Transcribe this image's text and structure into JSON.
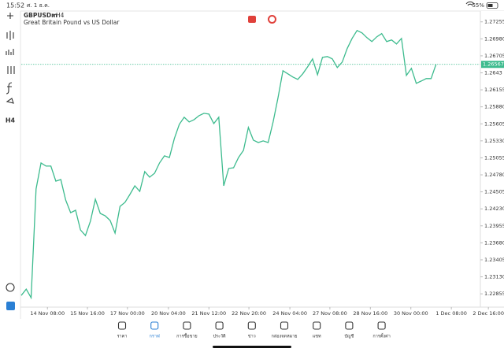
{
  "status_bar": {
    "time": "15:52",
    "date": "ศ. 1 ธ.ค.",
    "battery": "55%"
  },
  "chart_data": {
    "type": "line",
    "title": "GBPUSDm",
    "timeframe": "H4",
    "subtitle": "Great Britain Pound vs US Dollar",
    "color": "#3dbb8e",
    "x": [
      0,
      1,
      2,
      3,
      4,
      5,
      6,
      7,
      8,
      9,
      10,
      11,
      12,
      13,
      14,
      15,
      16,
      17,
      18,
      19,
      20,
      21,
      22,
      23,
      24,
      25,
      26,
      27,
      28,
      29,
      30,
      31,
      32,
      33,
      34,
      35,
      36,
      37,
      38,
      39,
      40,
      41,
      42,
      43,
      44,
      45,
      46,
      47,
      48,
      49,
      50,
      51,
      52,
      53,
      54,
      55,
      56,
      57,
      58,
      59,
      60,
      61,
      62,
      63,
      64,
      65,
      66,
      67,
      68,
      69,
      70,
      71,
      72,
      73,
      74,
      75,
      76,
      77,
      78,
      79,
      80,
      81,
      82,
      83,
      84
    ],
    "values": [
      1.22829,
      1.22931,
      1.22791,
      1.24551,
      1.24972,
      1.24921,
      1.24921,
      1.24678,
      1.24704,
      1.24372,
      1.24168,
      1.24207,
      1.23888,
      1.23798,
      1.24028,
      1.24385,
      1.24156,
      1.24117,
      1.24041,
      1.23837,
      1.2427,
      1.24334,
      1.24462,
      1.24602,
      1.24513,
      1.24832,
      1.24742,
      1.24806,
      1.24972,
      1.25087,
      1.25061,
      1.25367,
      1.25597,
      1.25712,
      1.25635,
      1.25673,
      1.25737,
      1.25775,
      1.25763,
      1.2561,
      1.25712,
      1.24602,
      1.24883,
      1.24895,
      1.25061,
      1.25176,
      1.25546,
      1.25342,
      1.25303,
      1.25329,
      1.25303,
      1.25635,
      1.26031,
      1.26464,
      1.26413,
      1.26362,
      1.26324,
      1.26413,
      1.26528,
      1.26656,
      1.264,
      1.26681,
      1.26694,
      1.26656,
      1.26515,
      1.26604,
      1.26821,
      1.26987,
      1.27115,
      1.27076,
      1.27,
      1.26936,
      1.27013,
      1.27064,
      1.26936,
      1.26962,
      1.26898,
      1.26987,
      1.26388,
      1.26502,
      1.2626,
      1.26298,
      1.26337,
      1.26337,
      1.26567
    ],
    "current_price": 1.26567,
    "xlim": [
      0,
      98.4
    ],
    "xticks": [
      {
        "value": 5.3,
        "label": "14 Nov 08:00"
      },
      {
        "value": 13.4,
        "label": "15 Nov 16:00"
      },
      {
        "value": 21.5,
        "label": "17 Nov 00:00"
      },
      {
        "value": 29.8,
        "label": "20 Nov 04:00"
      },
      {
        "value": 38,
        "label": "21 Nov 12:00"
      },
      {
        "value": 46.1,
        "label": "22 Nov 20:00"
      },
      {
        "value": 54.4,
        "label": "24 Nov 04:00"
      },
      {
        "value": 62.5,
        "label": "27 Nov 08:00"
      },
      {
        "value": 70.7,
        "label": "28 Nov 16:00"
      },
      {
        "value": 78.9,
        "label": "30 Nov 00:00"
      },
      {
        "value": 87.1,
        "label": "1 Dec 08:00"
      },
      {
        "value": 94.6,
        "label": "2 Dec 16:00"
      }
    ],
    "ylim": [
      1.2264,
      1.2743
    ],
    "yticks": [
      1.27255,
      {
        "value": 1.2698,
        "label": "1.26980"
      },
      1.26705,
      1.2643,
      1.26155,
      {
        "value": 1.2588,
        "label": "1.25880"
      },
      1.25605,
      {
        "value": 1.2533,
        "label": "1.25330"
      },
      1.25055,
      {
        "value": 1.2478,
        "label": "1.24780"
      },
      1.24505,
      {
        "value": 1.2423,
        "label": "1.24230"
      },
      1.23955,
      {
        "value": 1.2368,
        "label": "1.23680"
      },
      1.23405,
      {
        "value": 1.2313,
        "label": "1.23130"
      },
      1.22855
    ]
  },
  "bottom_nav": {
    "items": [
      "ราคา",
      "กราฟ",
      "การซื้อขาย",
      "ประวัติ",
      "ข่าว",
      "กล่องจดหมาย",
      "แชท",
      "บัญชี",
      "การตั้งค่า"
    ],
    "active": 1
  }
}
